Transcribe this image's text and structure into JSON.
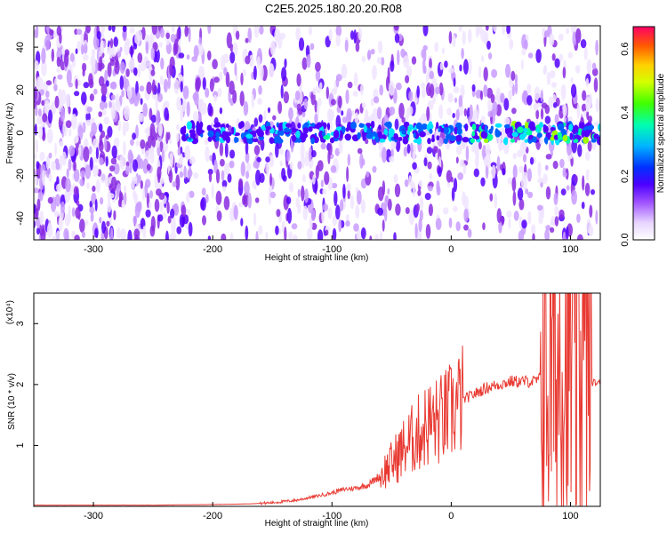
{
  "title": "C2E5.2025.180.20.20.R08",
  "chart_data": [
    {
      "type": "heatmap",
      "xlabel": "Height of straight line (km)",
      "ylabel": "Frequency (Hz)",
      "xlim": [
        -350,
        125
      ],
      "ylim": [
        -50,
        50
      ],
      "xticks": [
        -300,
        -200,
        -100,
        0,
        100
      ],
      "yticks": [
        -40,
        -20,
        0,
        20,
        40
      ],
      "colorbar": {
        "label": "Normalized spectral amplitude",
        "range": [
          0,
          0.67
        ],
        "ticks": [
          "0.0",
          "0.2",
          "0.4",
          "0.6"
        ]
      },
      "features": {
        "band_center_hz": 0,
        "band_visible_from_km": -225,
        "band_peak_amplitude": 0.42,
        "colors": [
          "#f0e4ff",
          "#c99cff",
          "#8a2be2",
          "#5500ff",
          "#0060ff",
          "#00e0ff",
          "#00ffa0",
          "#a0ff00"
        ]
      }
    },
    {
      "type": "line",
      "xlabel": "Height of straight line (km)",
      "ylabel": "SNR (10 * v/v)",
      "ymultiplier": "(x10⁴)",
      "xlim": [
        -350,
        125
      ],
      "ylim": [
        0,
        3.5
      ],
      "xticks": [
        -300,
        -200,
        -100,
        0,
        100
      ],
      "yticks": [
        1,
        2,
        3
      ],
      "color": "#e83a32",
      "series_points_x": [
        -350,
        -300,
        -250,
        -200,
        -170,
        -150,
        -130,
        -110,
        -100,
        -90,
        -80,
        -70,
        -60,
        -50,
        -40,
        -30,
        -20,
        -10,
        0,
        10,
        20,
        30,
        40,
        50,
        60,
        70,
        75,
        80,
        85,
        90,
        95,
        100,
        105,
        110,
        115,
        120,
        125
      ],
      "series_points_y": [
        0.02,
        0.02,
        0.02,
        0.03,
        0.04,
        0.06,
        0.1,
        0.18,
        0.22,
        0.28,
        0.3,
        0.35,
        0.5,
        0.7,
        0.95,
        1.15,
        1.35,
        1.4,
        1.55,
        1.75,
        1.85,
        1.95,
        2.0,
        2.05,
        2.05,
        2.05,
        2.1,
        2.2,
        2.3,
        2.5,
        2.4,
        2.3,
        2.2,
        2.1,
        2.05,
        2.03,
        2.02
      ]
    }
  ]
}
